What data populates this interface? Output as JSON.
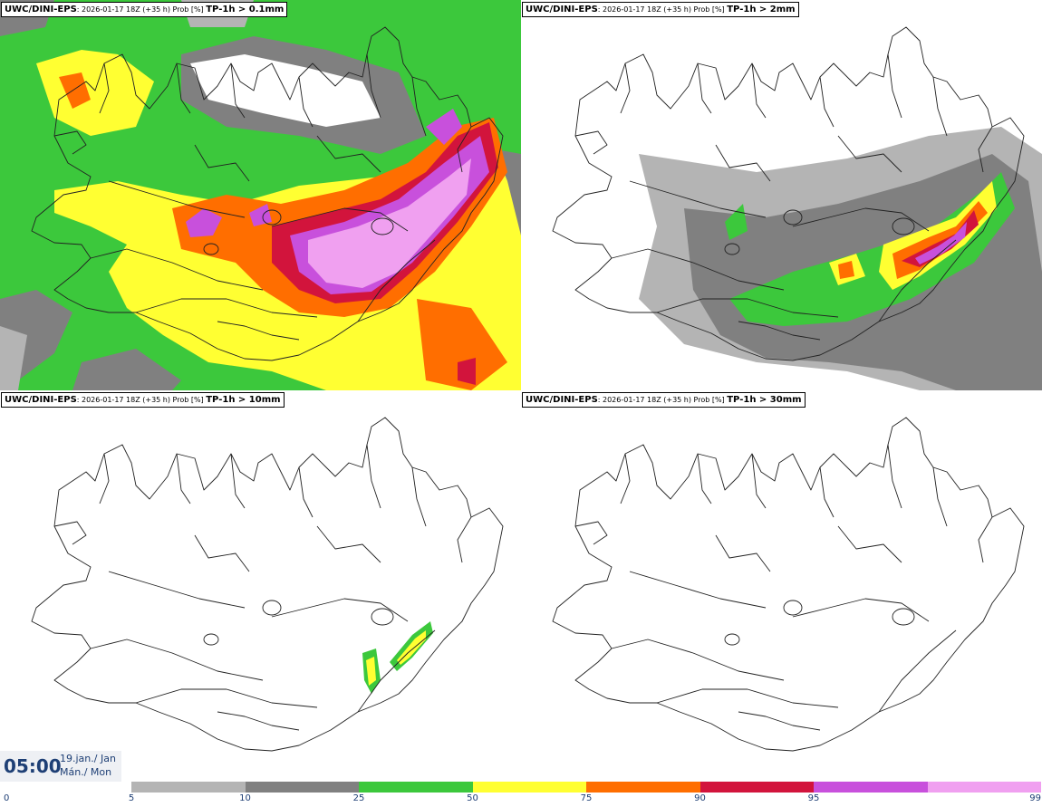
{
  "panels": [
    {
      "model": "UWC/DINI-EPS",
      "run": ": 2026-01-17 18Z (+35 h) Prob [%] ",
      "field": "TP-1h > 0.1mm"
    },
    {
      "model": "UWC/DINI-EPS",
      "run": ": 2026-01-17 18Z (+35 h) Prob [%] ",
      "field": "TP-1h > 2mm"
    },
    {
      "model": "UWC/DINI-EPS",
      "run": ": 2026-01-17 18Z (+35 h) Prob [%] ",
      "field": "TP-1h > 10mm"
    },
    {
      "model": "UWC/DINI-EPS",
      "run": ": 2026-01-17 18Z (+35 h) Prob [%] ",
      "field": "TP-1h > 30mm"
    }
  ],
  "clock": {
    "time": "05:00",
    "date": "19.jan./ Jan",
    "day": "Mán./ Mon"
  },
  "colorbar": {
    "ticks": [
      "0",
      "5",
      "10",
      "25",
      "50",
      "75",
      "90",
      "95",
      "99"
    ],
    "colors": [
      "#b4b4b4",
      "#808080",
      "#3cc83c",
      "#ffff32",
      "#ff6e00",
      "#d2143c",
      "#c850dc",
      "#f0a0f0"
    ]
  }
}
